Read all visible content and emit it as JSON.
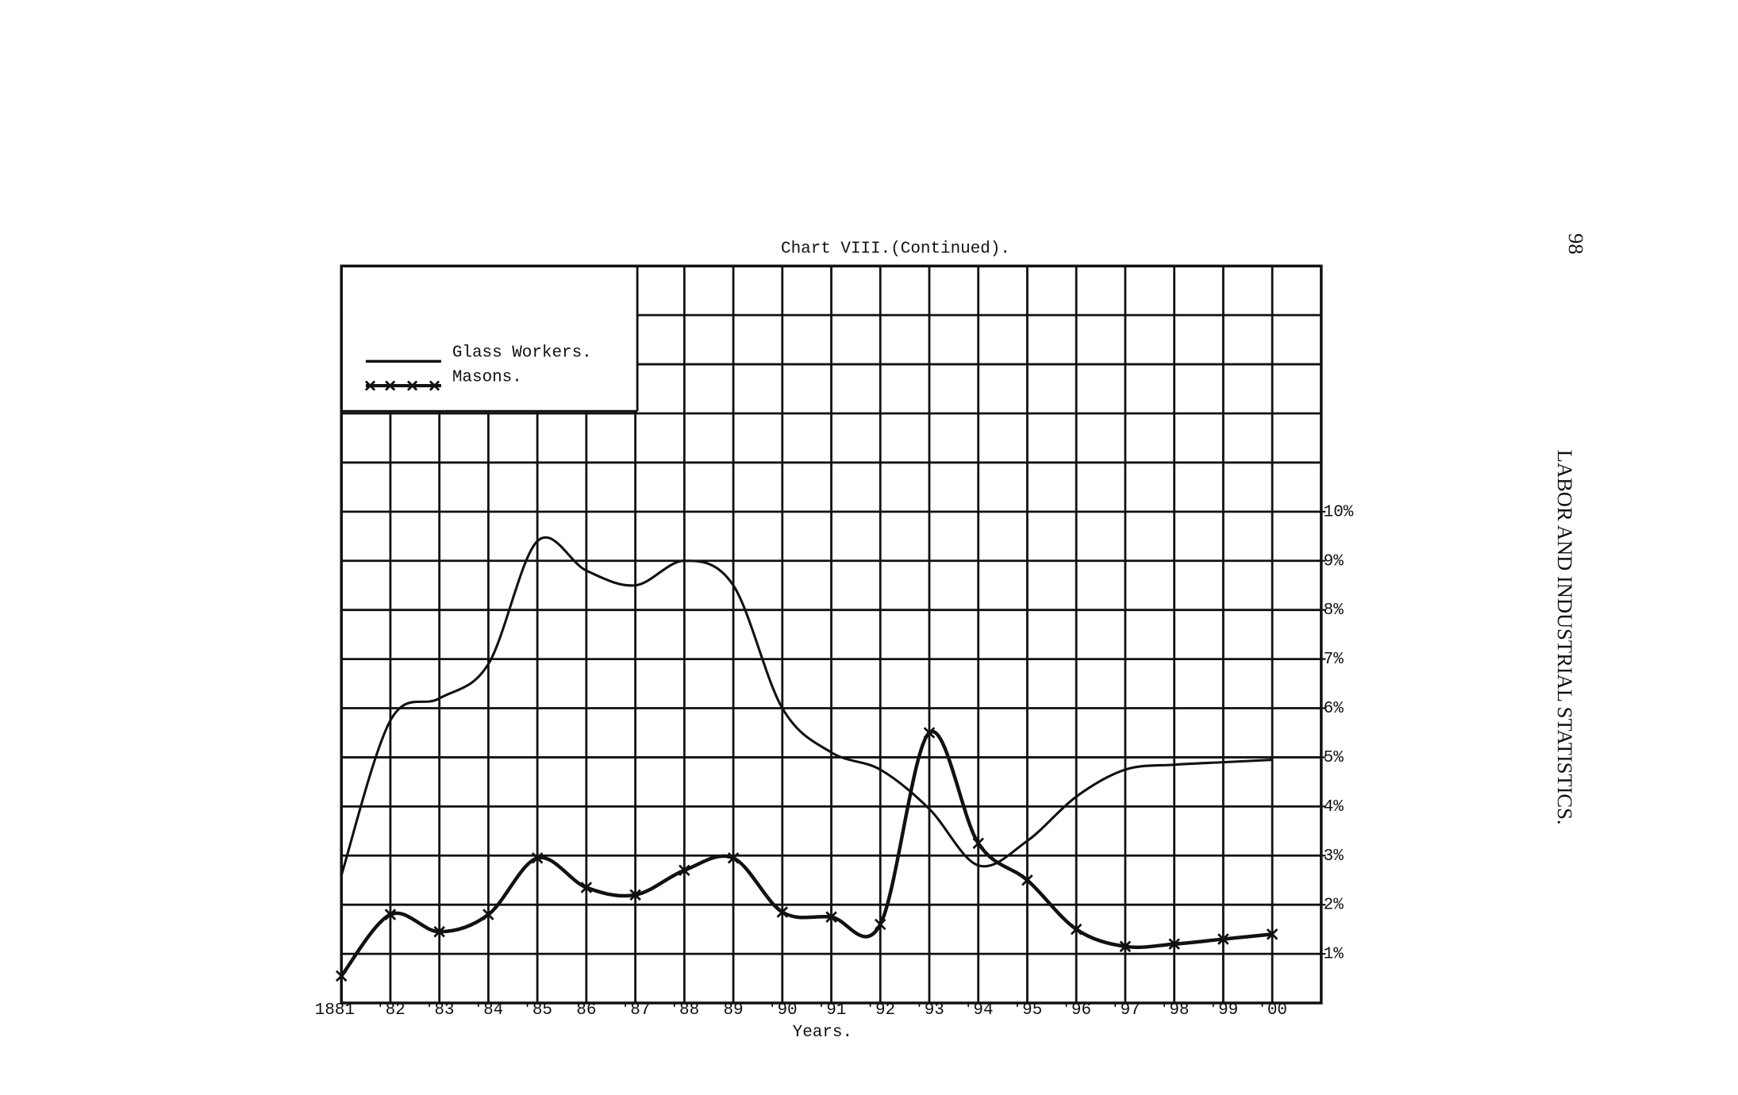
{
  "chart_data": {
    "type": "line",
    "title": "Chart VIII.(Continued).",
    "x_label": "Years.",
    "categories": [
      "1881",
      "'82",
      "'83",
      "'84",
      "'85",
      "86",
      "'87",
      "'88",
      "89",
      "'90",
      "'91",
      "'92",
      "'93",
      "'94",
      "'95",
      "'96",
      "'97",
      "'98",
      "'99",
      "'00"
    ],
    "series": [
      {
        "name": "Glass Workers.",
        "color": "#111111",
        "marker": "none",
        "values": [
          2.6,
          5.75,
          6.2,
          6.9,
          9.4,
          8.8,
          8.5,
          9.0,
          8.5,
          6.0,
          5.1,
          4.75,
          3.95,
          2.8,
          3.3,
          4.2,
          4.75,
          4.85,
          4.9,
          4.95
        ]
      },
      {
        "name": "Masons.",
        "color": "#111111",
        "marker": "x",
        "values": [
          0.55,
          1.8,
          1.45,
          1.8,
          2.95,
          2.35,
          2.2,
          2.7,
          2.95,
          1.85,
          1.75,
          1.6,
          5.5,
          3.25,
          2.5,
          1.5,
          1.15,
          1.2,
          1.3,
          1.4
        ]
      }
    ],
    "ylim": [
      0,
      15
    ],
    "yticks": [
      {
        "value": 1,
        "label": "1%"
      },
      {
        "value": 2,
        "label": "2%"
      },
      {
        "value": 3,
        "label": "3%"
      },
      {
        "value": 4,
        "label": "4%"
      },
      {
        "value": 5,
        "label": "5%"
      },
      {
        "value": 6,
        "label": "6%"
      },
      {
        "value": 7,
        "label": "7%"
      },
      {
        "value": 8,
        "label": "8%"
      },
      {
        "value": 9,
        "label": "9%"
      },
      {
        "value": 10,
        "label": "10%"
      }
    ],
    "grid": true,
    "legend_position": "upper left"
  },
  "page": {
    "side_title": "LABOR AND INDUSTRIAL STATISTICS.",
    "page_number": "98"
  }
}
